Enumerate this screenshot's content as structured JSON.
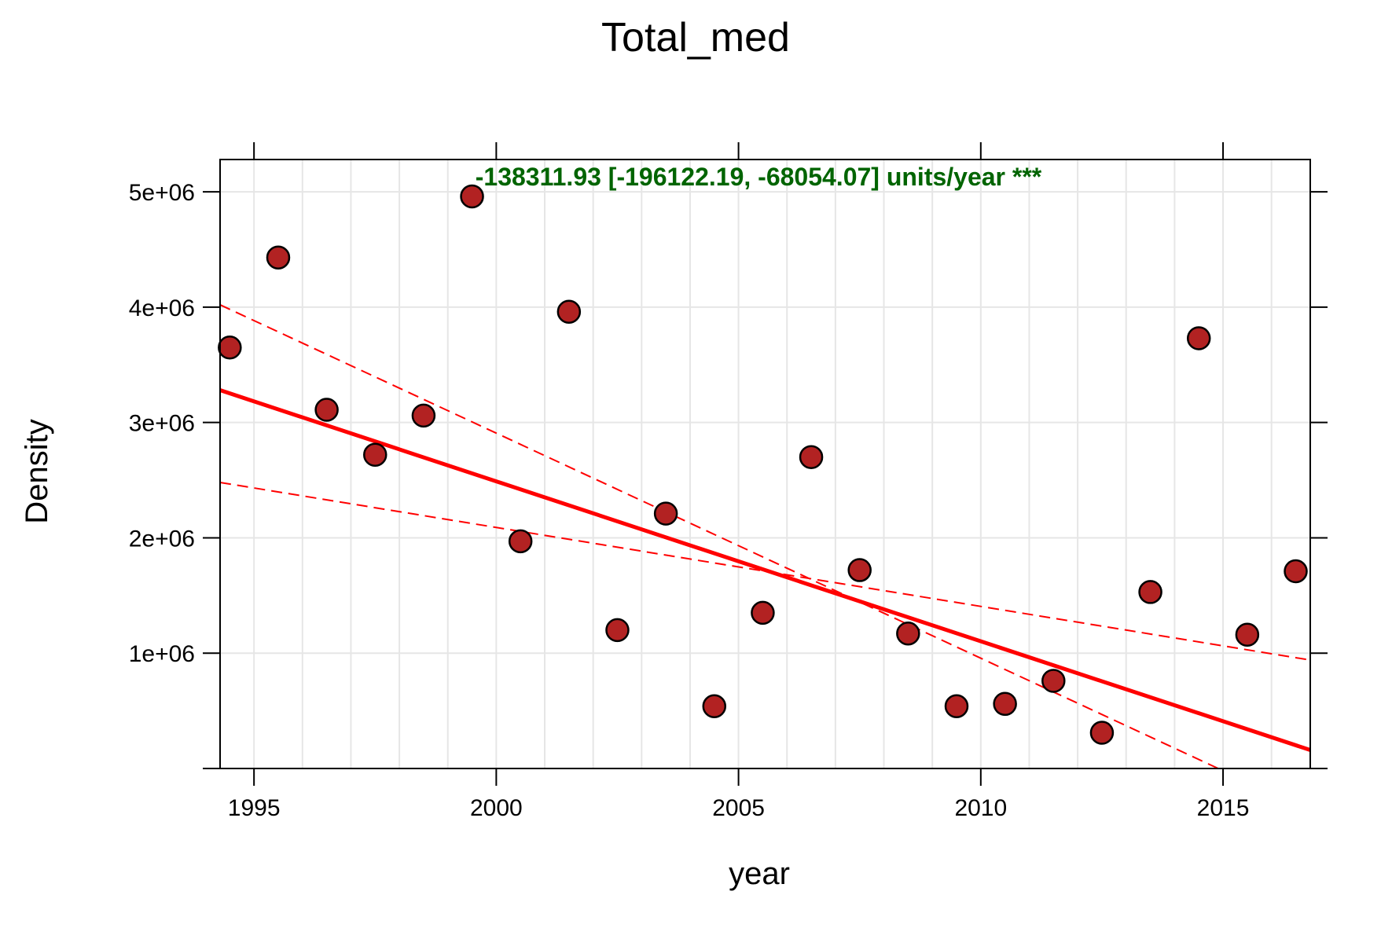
{
  "chart_data": {
    "type": "scatter",
    "title": "Total_med",
    "xlabel": "year",
    "ylabel": "Density",
    "xlim": [
      1994.3,
      2016.8
    ],
    "ylim": [
      0,
      5280000
    ],
    "x_ticks": [
      1995,
      2000,
      2005,
      2010,
      2015
    ],
    "x_tick_labels": [
      "1995",
      "2000",
      "2005",
      "2010",
      "2015"
    ],
    "y_ticks": [
      1000000,
      2000000,
      3000000,
      4000000,
      5000000
    ],
    "y_tick_labels": [
      "1e+06",
      "2e+06",
      "3e+06",
      "4e+06",
      "5e+06"
    ],
    "grid": true,
    "annotation": "-138311.93 [-196122.19, -68054.07] units/year ***",
    "colors": {
      "point_fill": "#b22222",
      "point_stroke": "#000000",
      "trend": "#ff0000",
      "annotation": "#006400",
      "grid": "#e6e6e6"
    },
    "series": [
      {
        "x": [
          1994.5,
          1995.5,
          1996.5,
          1997.5,
          1998.5,
          1999.5,
          2000.5,
          2001.5,
          2002.5,
          2003.5,
          2004.5,
          2005.5,
          2006.5,
          2007.5,
          2008.5,
          2009.5,
          2010.5,
          2011.5,
          2012.5,
          2013.5,
          2014.5,
          2015.5,
          2016.5
        ],
        "y": [
          3650000,
          4430000,
          3110000,
          2720000,
          3060000,
          4960000,
          1970000,
          3960000,
          1200000,
          2210000,
          540000,
          1350000,
          2700000,
          1720000,
          1170000,
          540000,
          560000,
          760000,
          310000,
          1530000,
          3730000,
          1160000,
          1710000
        ]
      }
    ],
    "trend_line": {
      "start": [
        1994.3,
        3280000
      ],
      "end": [
        2016.8,
        160000
      ]
    },
    "ci_lines": [
      {
        "start": [
          1994.3,
          4020000
        ],
        "end": [
          2014.9,
          0
        ]
      },
      {
        "start": [
          1994.3,
          2480000
        ],
        "end": [
          2016.8,
          940000
        ]
      }
    ]
  }
}
